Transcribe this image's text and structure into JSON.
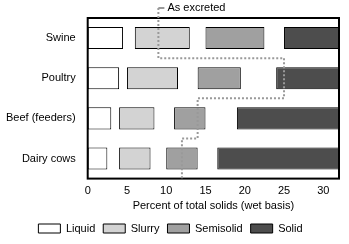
{
  "chart_data": {
    "type": "bar",
    "orientation": "horizontal",
    "x_label": "Percent of total solids (wet basis)",
    "categories": [
      "Swine",
      "Poultry",
      "Beef (feeders)",
      "Dairy cows"
    ],
    "series": [
      {
        "name": "Liquid",
        "color": "#ffffff",
        "values": [
          [
            0,
            4.5
          ],
          [
            0,
            4
          ],
          [
            0,
            3
          ],
          [
            0,
            2.5
          ]
        ]
      },
      {
        "name": "Slurry",
        "color": "#d3d3d3",
        "values": [
          [
            6,
            13
          ],
          [
            5,
            11.5
          ],
          [
            4,
            8.5
          ],
          [
            4,
            8
          ]
        ]
      },
      {
        "name": "Semisolid",
        "color": "#a0a0a0",
        "values": [
          [
            15,
            22.5
          ],
          [
            14,
            19.5
          ],
          [
            11,
            15
          ],
          [
            10,
            14
          ]
        ]
      },
      {
        "name": "Solid",
        "color": "#4d4d4d",
        "values": [
          [
            25,
            32
          ],
          [
            24,
            32
          ],
          [
            19,
            32
          ],
          [
            16.5,
            32
          ]
        ]
      }
    ],
    "as_excreted": {
      "label": "As excreted",
      "values": [
        9,
        25,
        14,
        12
      ]
    },
    "xlim": [
      0,
      32
    ],
    "xticks": [
      0,
      5,
      10,
      15,
      20,
      25,
      30
    ],
    "grid": false,
    "legend": "bottom"
  }
}
